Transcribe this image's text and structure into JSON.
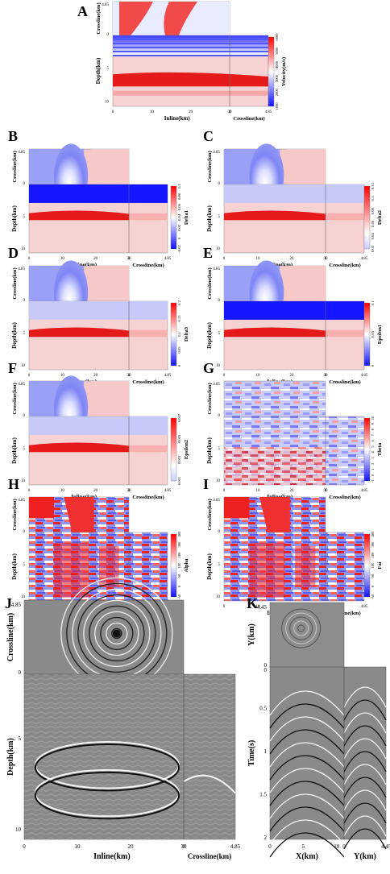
{
  "panels": [
    {
      "id": "A",
      "inline_label": "Inline(km)",
      "crossline_label": "Crossline(km)",
      "depth_label": "Depth(km)",
      "cb_label": "Velocity(m/s)",
      "cb_ticks": [
        "1000",
        "2000",
        "3000",
        "4000",
        "5000",
        "6000"
      ],
      "x_ticks": [
        "0",
        "10",
        "20",
        "30"
      ],
      "c_ticks": [
        "0",
        "4.85"
      ],
      "d_ticks": [
        "5",
        "10"
      ],
      "top_ticks": [
        "4.85",
        "0"
      ]
    },
    {
      "id": "B",
      "inline_label": "Inline(km)",
      "crossline_label": "Crossline(km)",
      "depth_label": "Depth(km)",
      "cb_label": "Delta1",
      "cb_ticks": [
        "-0.02",
        "0",
        "0.02",
        "0.04",
        "0.06",
        "0.08",
        "0.1"
      ],
      "x_ticks": [
        "0",
        "10",
        "20",
        "30"
      ],
      "c_ticks": [
        "0",
        "4.85"
      ],
      "d_ticks": [
        "5",
        "10"
      ],
      "top_ticks": [
        "4.85",
        "0"
      ]
    },
    {
      "id": "C",
      "inline_label": "Inline(km)",
      "crossline_label": "Crossline(km)",
      "depth_label": "Depth(km)",
      "cb_label": "Delta2",
      "cb_ticks": [
        "0.02",
        "0.04",
        "0.06",
        "0.08",
        "0.1",
        "0.12"
      ],
      "x_ticks": [
        "0",
        "10",
        "20",
        "30"
      ],
      "c_ticks": [
        "0",
        "4.85"
      ],
      "d_ticks": [
        "5",
        "10"
      ],
      "top_ticks": [
        "4.85",
        "0"
      ]
    },
    {
      "id": "D",
      "inline_label": "Inline(km)",
      "crossline_label": "Crossline(km)",
      "depth_label": "Depth(km)",
      "cb_label": "Delta3",
      "cb_ticks": [
        "0",
        "0.05",
        "0.1",
        "0.15",
        "0.2"
      ],
      "x_ticks": [
        "0",
        "10",
        "20",
        "30"
      ],
      "c_ticks": [
        "0",
        "4.85"
      ],
      "d_ticks": [
        "5",
        "10"
      ],
      "top_ticks": [
        "4.85",
        "0"
      ]
    },
    {
      "id": "E",
      "inline_label": "Inline(km)",
      "crossline_label": "Crossline(km)",
      "depth_label": "Depth(km)",
      "cb_label": "Epsilon1",
      "cb_ticks": [
        "0",
        "0.05",
        "0.1"
      ],
      "x_ticks": [
        "0",
        "10",
        "20",
        "30"
      ],
      "c_ticks": [
        "0",
        "4.85"
      ],
      "d_ticks": [
        "5",
        "10"
      ],
      "top_ticks": [
        "4.85",
        "0"
      ]
    },
    {
      "id": "F",
      "inline_label": "Inline(km)",
      "crossline_label": "Crossline(km)",
      "depth_label": "Depth(km)",
      "cb_label": "Epsilon2",
      "cb_ticks": [
        "0.001",
        "0.003",
        "0.005",
        "0.007"
      ],
      "x_ticks": [
        "0",
        "10",
        "20",
        "30"
      ],
      "c_ticks": [
        "0",
        "4.85"
      ],
      "d_ticks": [
        "5",
        "10"
      ],
      "top_ticks": [
        "4.85",
        "0"
      ]
    },
    {
      "id": "G",
      "inline_label": "Inline(km)",
      "crossline_label": "Crossline(km)",
      "depth_label": "Depth(km)",
      "cb_label": "Theta",
      "cb_ticks": [
        "-1",
        "0",
        "1",
        "2",
        "3",
        "4",
        "5",
        "6",
        "7",
        "8",
        "9",
        "10"
      ],
      "x_ticks": [
        "0",
        "10",
        "20",
        "30"
      ],
      "c_ticks": [
        "0",
        "4.85"
      ],
      "d_ticks": [
        "5",
        "10"
      ],
      "top_ticks": [
        "4.85",
        "0"
      ]
    },
    {
      "id": "H",
      "inline_label": "Inline(km)",
      "crossline_label": "Crossline(km)",
      "depth_label": "Depth(km)",
      "cb_label": "Alpha",
      "cb_ticks": [
        "-50",
        "0",
        "50",
        "100",
        "200",
        "300",
        "400"
      ],
      "x_ticks": [
        "0",
        "10",
        "20",
        "30"
      ],
      "c_ticks": [
        "0",
        "4.85"
      ],
      "d_ticks": [
        "5",
        "10"
      ],
      "top_ticks": [
        "4.85",
        "0"
      ]
    },
    {
      "id": "I",
      "inline_label": "Inline(km)",
      "crossline_label": "Crossline(km)",
      "depth_label": "Depth(km)",
      "cb_label": "Fai",
      "cb_ticks": [
        "-50",
        "0",
        "50",
        "100",
        "200",
        "300",
        "400"
      ],
      "x_ticks": [
        "0",
        "10",
        "20",
        "30"
      ],
      "c_ticks": [
        "0",
        "4.85"
      ],
      "d_ticks": [
        "5",
        "10"
      ],
      "top_ticks": [
        "4.85",
        "0"
      ]
    }
  ],
  "panel_j": {
    "id": "J",
    "inline_label": "Inline(km)",
    "crossline_label": "Crossline(km)",
    "depth_label": "Depth(km)",
    "top_label": "Crossline(km)",
    "x_ticks": [
      "0",
      "10",
      "20",
      "30"
    ],
    "c_ticks": [
      "0",
      "4.85"
    ],
    "d_ticks": [
      "5",
      "10"
    ],
    "top_ticks": [
      "4.85",
      "0"
    ]
  },
  "panel_k": {
    "id": "K",
    "x_label": "X(km)",
    "y_label": "Y(km)",
    "time_label": "Time(s)",
    "top_label": "Y(km)",
    "x_ticks": [
      "0",
      "5",
      "10"
    ],
    "y_ticks": [
      "0",
      "4.45"
    ],
    "top_ticks": [
      "4.45",
      "0"
    ],
    "t_ticks": [
      "0",
      "0.5",
      "1",
      "1.5",
      "2"
    ]
  }
}
